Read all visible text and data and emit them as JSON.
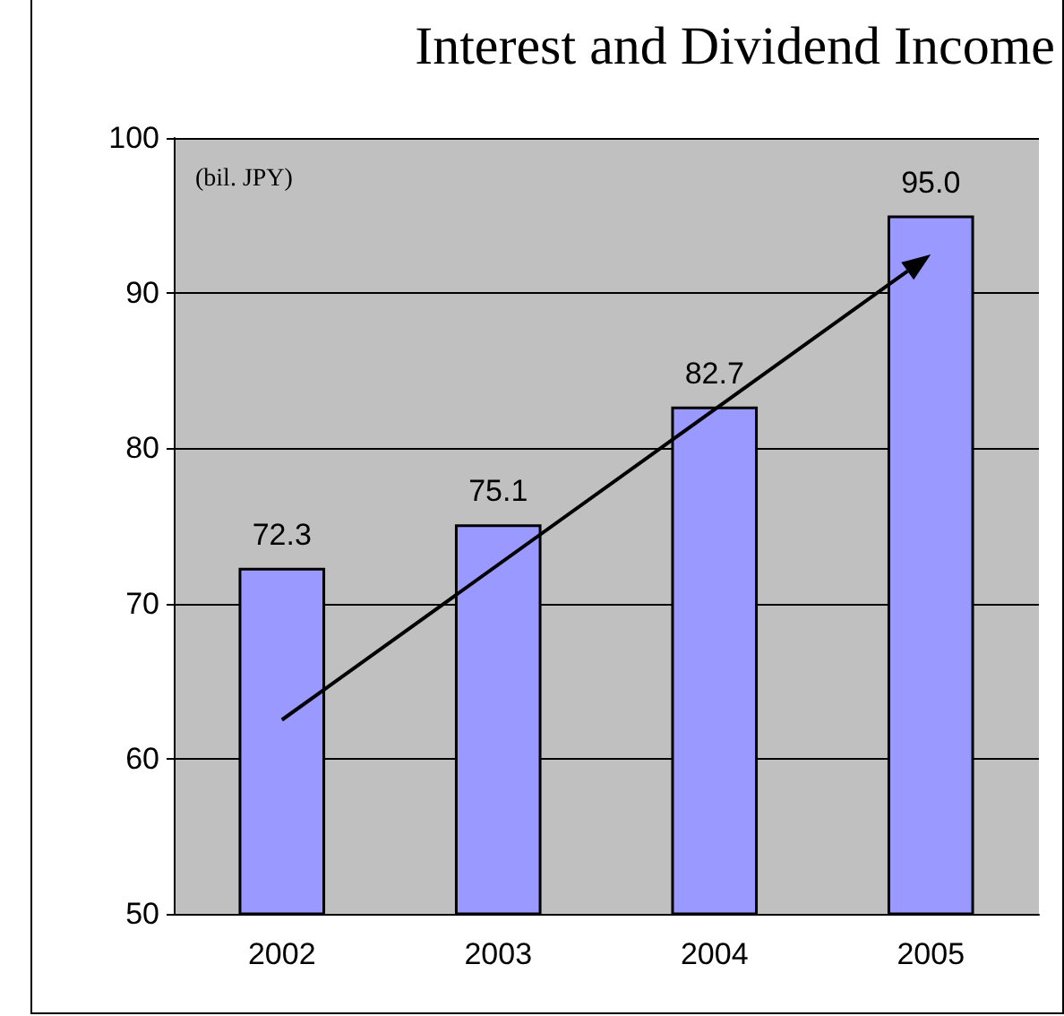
{
  "chart_data": {
    "type": "bar",
    "title": "Interest and Dividend Income",
    "ylabel": "(bil. JPY)",
    "categories": [
      "2002",
      "2003",
      "2004",
      "2005"
    ],
    "values": [
      72.3,
      75.1,
      82.7,
      95.0
    ],
    "color": "#9999ff",
    "value_labels": [
      "72.3",
      "75.1",
      "82.7",
      "95.0"
    ],
    "ylim": [
      50,
      100
    ],
    "yticks": [
      50,
      60,
      70,
      80,
      90,
      100
    ],
    "grid": "y"
  }
}
